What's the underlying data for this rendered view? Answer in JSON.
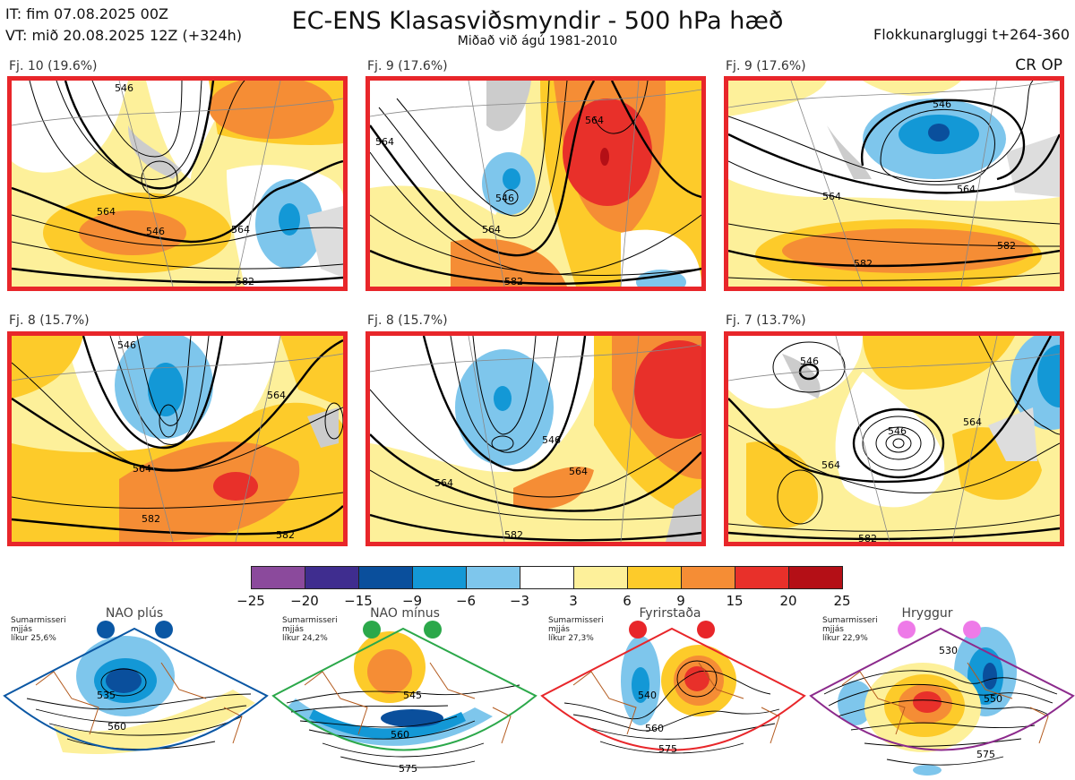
{
  "header": {
    "init_time": "IT: fim 07.08.2025 00Z",
    "valid_time": "VT: mið 20.08.2025 12Z  (+324h)",
    "title": "EC-ENS Klasasviðsmyndir - 500 hPa hæð",
    "subtitle": "Miðað við ágú 1981-2010",
    "window": "Flokkunargluggi t+264-360",
    "cr_op": "CR OP"
  },
  "panels": [
    {
      "label": "Fj. 10 (19.6%)",
      "contours": [
        "546",
        "546",
        "564",
        "564",
        "582"
      ]
    },
    {
      "label": "Fj. 9 (17.6%)",
      "contours": [
        "564",
        "546",
        "564",
        "564",
        "582"
      ]
    },
    {
      "label": "Fj. 9 (17.6%)",
      "contours": [
        "546",
        "564",
        "564",
        "582",
        "582"
      ]
    },
    {
      "label": "Fj. 8 (15.7%)",
      "contours": [
        "546",
        "564",
        "564",
        "582",
        "582"
      ]
    },
    {
      "label": "Fj. 8 (15.7%)",
      "contours": [
        "546",
        "564",
        "564",
        "582"
      ]
    },
    {
      "label": "Fj. 7 (13.7%)",
      "contours": [
        "546",
        "546",
        "564",
        "564",
        "582"
      ]
    }
  ],
  "colorbar": {
    "ticks": [
      "−25",
      "−20",
      "−15",
      "−9",
      "−6",
      "−3",
      "3",
      "6",
      "9",
      "15",
      "20",
      "25"
    ],
    "colors": [
      "#8b4a9c",
      "#3f2d8f",
      "#0a4f9c",
      "#1398d6",
      "#7ec6ec",
      "#ffffff",
      "#fdf09a",
      "#fdcb2a",
      "#f58d35",
      "#e8302a",
      "#b40f16"
    ]
  },
  "regimes": [
    {
      "name": "NAO plús",
      "season": "Sumarmisseri",
      "mean": "mjjás",
      "prob": "líkur 25,6%",
      "color": "#0a57a4",
      "contours": [
        "535",
        "560"
      ]
    },
    {
      "name": "NAO mínus",
      "season": "Sumarmisseri",
      "mean": "mjjás",
      "prob": "líkur 24,2%",
      "color": "#2ba84a",
      "contours": [
        "545",
        "560",
        "575"
      ]
    },
    {
      "name": "Fyrirstaða",
      "season": "Sumarmisseri",
      "mean": "mjjás",
      "prob": "líkur 27,3%",
      "color": "#e8262a",
      "contours": [
        "540",
        "560",
        "575"
      ]
    },
    {
      "name": "Hryggur",
      "season": "Sumarmisseri",
      "mean": "mjjás",
      "prob": "líkur 22,9%",
      "color": "#ee7ae8",
      "contours": [
        "530",
        "550",
        "575"
      ]
    }
  ]
}
